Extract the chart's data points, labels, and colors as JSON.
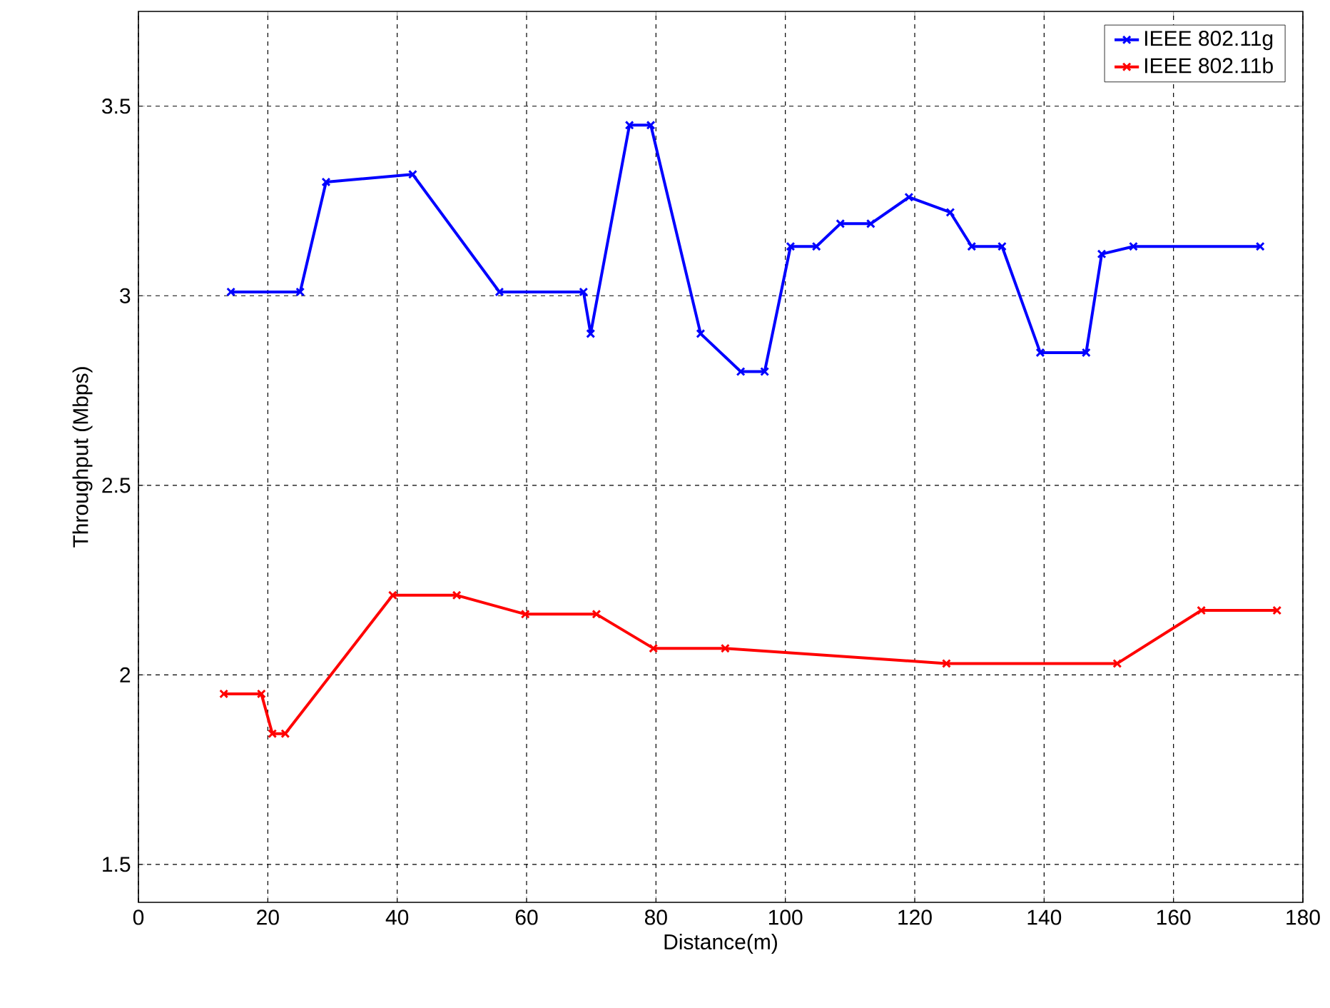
{
  "chart_data": {
    "type": "line",
    "xlabel": "Distance(m)",
    "ylabel": "Throughput (Mbps)",
    "xlim": [
      0,
      180
    ],
    "xticks": [
      0,
      20,
      40,
      60,
      80,
      100,
      120,
      140,
      160,
      180
    ],
    "ylim": [
      1.4,
      3.75
    ],
    "yticks": [
      1.5,
      2,
      2.5,
      3,
      3.5
    ],
    "grid": true,
    "legend": "top right",
    "marker": "cross",
    "line_style": "solid",
    "series": [
      {
        "name": "IEEE 802.11g",
        "color": "#0000ff",
        "x": [
          14.3,
          25,
          29,
          42.4,
          55.8,
          68.8,
          69.9,
          75.9,
          79.2,
          86.9,
          93.1,
          96.8,
          100.8,
          104.8,
          108.5,
          113.2,
          119.1,
          125.5,
          128.8,
          133.5,
          139.4,
          146.5,
          148.9,
          153.8,
          173.4
        ],
        "values": [
          3.01,
          3.01,
          3.3,
          3.32,
          3.01,
          3.01,
          2.9,
          3.45,
          3.45,
          2.9,
          2.8,
          2.8,
          3.13,
          3.13,
          3.19,
          3.19,
          3.26,
          3.22,
          3.13,
          3.13,
          2.85,
          2.85,
          3.11,
          3.13,
          3.13
        ]
      },
      {
        "name": "IEEE 802.11b",
        "color": "#ff0000",
        "x": [
          13.2,
          19,
          20.7,
          22.7,
          39.3,
          49.2,
          59.8,
          70.8,
          79.6,
          90.7,
          124.9,
          151.3,
          164.3,
          176
        ],
        "values": [
          1.95,
          1.95,
          1.845,
          1.845,
          2.21,
          2.21,
          2.16,
          2.16,
          2.07,
          2.07,
          2.03,
          2.03,
          2.17,
          2.17
        ]
      }
    ]
  }
}
